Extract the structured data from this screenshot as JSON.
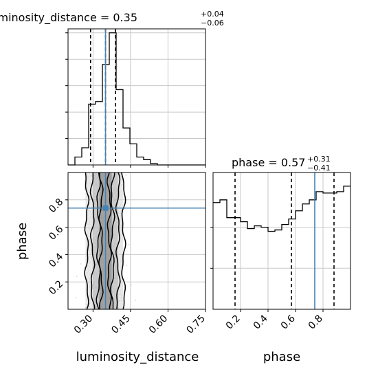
{
  "colors": {
    "truth": "#4682b4",
    "hist": "#000000",
    "grid": "#c8c8c8",
    "points": "#9a9a9a"
  },
  "chart_data": {
    "type": "corner",
    "parameters": [
      "luminosity_distance",
      "phase"
    ],
    "truths": {
      "luminosity_distance": 0.35,
      "phase": 0.74
    },
    "summaries": [
      {
        "param": "luminosity_distance",
        "median": "0.35",
        "upper": "+0.04",
        "lower": "−0.06",
        "quantiles": [
          0.29,
          0.35,
          0.39
        ]
      },
      {
        "param": "phase",
        "median": "0.57",
        "upper": "+0.31",
        "lower": "−0.41",
        "quantiles": [
          0.16,
          0.57,
          0.88
        ]
      }
    ],
    "marginals": {
      "luminosity_distance": {
        "xlim": [
          0.2,
          0.75
        ],
        "edges": [
          0.2,
          0.2275,
          0.255,
          0.2825,
          0.31,
          0.3375,
          0.365,
          0.3925,
          0.42,
          0.4475,
          0.475,
          0.5025,
          0.53,
          0.5575,
          0.585,
          0.6125,
          0.64,
          0.6675,
          0.695,
          0.7225,
          0.75
        ],
        "counts": [
          0,
          6,
          13,
          46,
          48,
          76,
          100,
          57,
          28,
          16,
          6,
          4,
          1,
          0,
          0,
          0,
          0,
          0,
          0,
          0
        ]
      },
      "phase": {
        "xlim": [
          0.0,
          1.0
        ],
        "edges": [
          0.0,
          0.05,
          0.1,
          0.15,
          0.2,
          0.25,
          0.3,
          0.35,
          0.4,
          0.45,
          0.5,
          0.55,
          0.6,
          0.65,
          0.7,
          0.75,
          0.8,
          0.85,
          0.9,
          0.95,
          1.0
        ],
        "counts": [
          0.78,
          0.8,
          0.67,
          0.67,
          0.64,
          0.59,
          0.61,
          0.6,
          0.57,
          0.58,
          0.62,
          0.66,
          0.72,
          0.77,
          0.8,
          0.86,
          0.85,
          0.85,
          0.86,
          0.9
        ],
        "ylim": [
          0.0,
          1.0
        ]
      }
    },
    "joint": {
      "x": "luminosity_distance",
      "y": "phase",
      "xlim": [
        0.2,
        0.75
      ],
      "ylim": [
        0.0,
        1.0
      ]
    },
    "xticks": {
      "luminosity_distance": [
        "0.30",
        "0.45",
        "0.60",
        "0.75"
      ],
      "phase": [
        "0.2",
        "0.4",
        "0.6",
        "0.8"
      ]
    },
    "yticks": {
      "phase": [
        "0.2",
        "0.4",
        "0.6",
        "0.8"
      ]
    },
    "xlabels": {
      "luminosity_distance": "luminosity_distance",
      "phase": "phase"
    },
    "ylabels": {
      "phase": "phase"
    }
  }
}
